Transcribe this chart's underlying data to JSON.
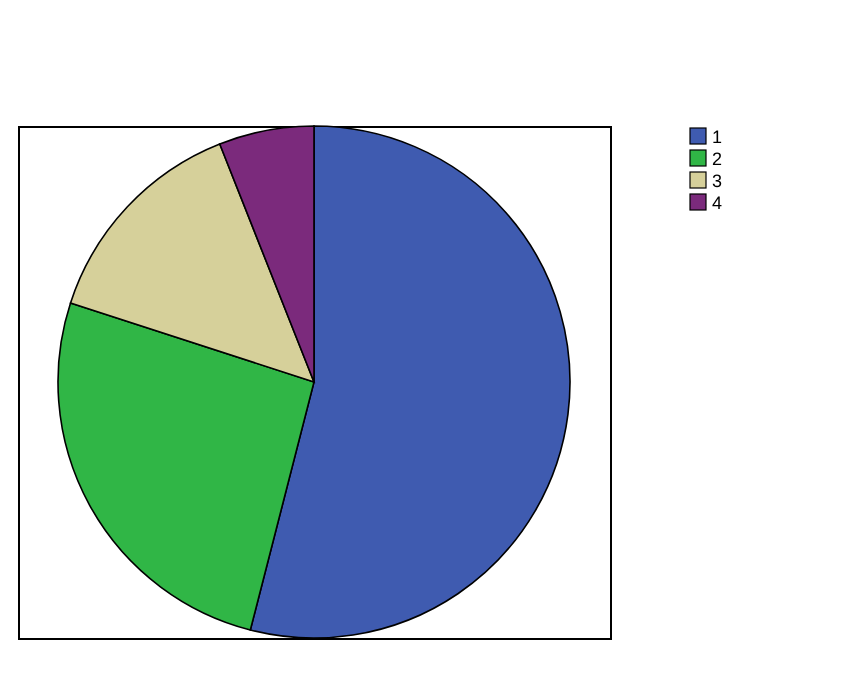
{
  "chart_data": {
    "type": "pie",
    "categories": [
      "1",
      "2",
      "3",
      "4"
    ],
    "values": [
      54,
      26,
      14,
      6
    ],
    "colors": [
      "#3f5bb0",
      "#30b646",
      "#d6d09a",
      "#7b2a7c"
    ],
    "legend": "top right"
  }
}
